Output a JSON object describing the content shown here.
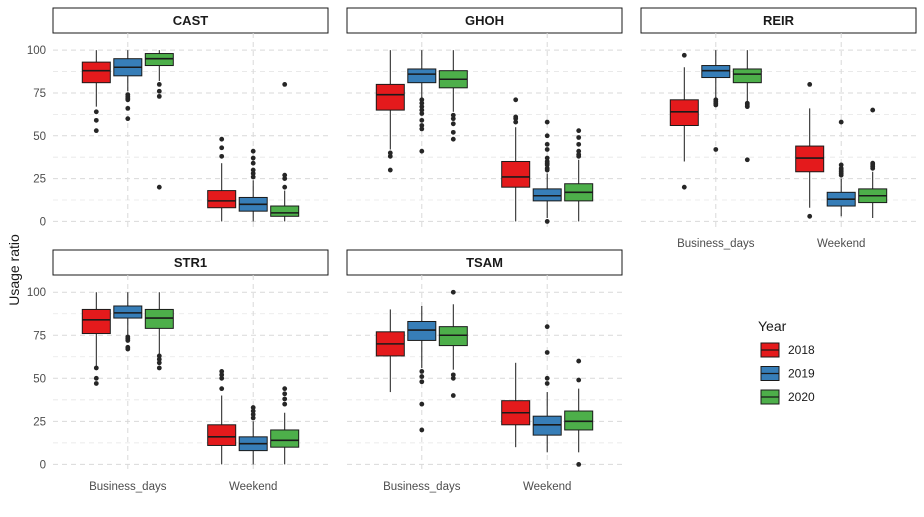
{
  "chart_data": {
    "type": "boxplot",
    "ylabel": "Usage ratio",
    "xlabel": "",
    "categories": [
      "Business_days",
      "Weekend"
    ],
    "y_ticks": [
      0,
      25,
      50,
      75,
      100
    ],
    "ylim": [
      -5,
      110
    ],
    "legend": {
      "title": "Year",
      "placement": "right",
      "entries": [
        {
          "name": "2018",
          "color": "#e41a1c"
        },
        {
          "name": "2019",
          "color": "#377eb8"
        },
        {
          "name": "2020",
          "color": "#4daf4a"
        }
      ]
    },
    "panels": [
      {
        "name": "CAST",
        "groups": [
          {
            "category": "Business_days",
            "year": "2018",
            "whisker_low": 67,
            "q1": 81,
            "median": 88,
            "q3": 93,
            "whisker_high": 100,
            "outliers": [
              64,
              59,
              53
            ]
          },
          {
            "category": "Business_days",
            "year": "2019",
            "whisker_low": 76,
            "q1": 85,
            "median": 90,
            "q3": 95,
            "whisker_high": 100,
            "outliers": [
              74,
              73,
              72,
              71,
              66,
              60
            ]
          },
          {
            "category": "Business_days",
            "year": "2020",
            "whisker_low": 82,
            "q1": 91,
            "median": 95,
            "q3": 98,
            "whisker_high": 100,
            "outliers": [
              80,
              76,
              73,
              20
            ]
          },
          {
            "category": "Weekend",
            "year": "2018",
            "whisker_low": 0,
            "q1": 8,
            "median": 12,
            "q3": 18,
            "whisker_high": 34,
            "outliers": [
              48,
              43,
              38
            ]
          },
          {
            "category": "Weekend",
            "year": "2019",
            "whisker_low": 0,
            "q1": 6,
            "median": 10,
            "q3": 14,
            "whisker_high": 24,
            "outliers": [
              41,
              37,
              34,
              30,
              28,
              26
            ]
          },
          {
            "category": "Weekend",
            "year": "2020",
            "whisker_low": 0,
            "q1": 3,
            "median": 5,
            "q3": 9,
            "whisker_high": 18,
            "outliers": [
              80,
              27,
              25,
              20
            ]
          }
        ]
      },
      {
        "name": "GHOH",
        "groups": [
          {
            "category": "Business_days",
            "year": "2018",
            "whisker_low": 42,
            "q1": 65,
            "median": 74,
            "q3": 80,
            "whisker_high": 100,
            "outliers": [
              40,
              38,
              30
            ]
          },
          {
            "category": "Business_days",
            "year": "2019",
            "whisker_low": 72,
            "q1": 81,
            "median": 86,
            "q3": 89,
            "whisker_high": 100,
            "outliers": [
              71,
              69,
              67,
              65,
              63,
              59,
              56,
              54,
              41
            ]
          },
          {
            "category": "Business_days",
            "year": "2020",
            "whisker_low": 64,
            "q1": 78,
            "median": 83,
            "q3": 88,
            "whisker_high": 100,
            "outliers": [
              62,
              60,
              57,
              52,
              48
            ]
          },
          {
            "category": "Weekend",
            "year": "2018",
            "whisker_low": 0,
            "q1": 20,
            "median": 26,
            "q3": 35,
            "whisker_high": 55,
            "outliers": [
              71,
              61,
              60,
              58
            ]
          },
          {
            "category": "Weekend",
            "year": "2019",
            "whisker_low": 2,
            "q1": 12,
            "median": 15,
            "q3": 19,
            "whisker_high": 28,
            "outliers": [
              58,
              50,
              45,
              42,
              37,
              35,
              34,
              33,
              31,
              30,
              0
            ]
          },
          {
            "category": "Weekend",
            "year": "2020",
            "whisker_low": 0,
            "q1": 12,
            "median": 17,
            "q3": 22,
            "whisker_high": 36,
            "outliers": [
              53,
              49,
              45,
              41,
              39,
              38
            ]
          }
        ]
      },
      {
        "name": "REIR",
        "groups": [
          {
            "category": "Business_days",
            "year": "2018",
            "whisker_low": 35,
            "q1": 56,
            "median": 64,
            "q3": 71,
            "whisker_high": 90,
            "outliers": [
              97,
              20
            ]
          },
          {
            "category": "Business_days",
            "year": "2019",
            "whisker_low": 72,
            "q1": 84,
            "median": 88,
            "q3": 91,
            "whisker_high": 100,
            "outliers": [
              71,
              70,
              69,
              68,
              42
            ]
          },
          {
            "category": "Business_days",
            "year": "2020",
            "whisker_low": 70,
            "q1": 81,
            "median": 86,
            "q3": 89,
            "whisker_high": 100,
            "outliers": [
              69,
              68,
              67,
              36
            ]
          },
          {
            "category": "Weekend",
            "year": "2018",
            "whisker_low": 8,
            "q1": 29,
            "median": 37,
            "q3": 44,
            "whisker_high": 66,
            "outliers": [
              80,
              3
            ]
          },
          {
            "category": "Weekend",
            "year": "2019",
            "whisker_low": 3,
            "q1": 9,
            "median": 13,
            "q3": 17,
            "whisker_high": 25,
            "outliers": [
              58,
              33,
              31,
              30,
              29,
              28,
              27
            ]
          },
          {
            "category": "Weekend",
            "year": "2020",
            "whisker_low": 2,
            "q1": 11,
            "median": 15,
            "q3": 19,
            "whisker_high": 29,
            "outliers": [
              65,
              34,
              33,
              32,
              31
            ]
          }
        ]
      },
      {
        "name": "STR1",
        "groups": [
          {
            "category": "Business_days",
            "year": "2018",
            "whisker_low": 57,
            "q1": 76,
            "median": 84,
            "q3": 90,
            "whisker_high": 100,
            "outliers": [
              56,
              50,
              47
            ]
          },
          {
            "category": "Business_days",
            "year": "2019",
            "whisker_low": 74,
            "q1": 85,
            "median": 88,
            "q3": 92,
            "whisker_high": 100,
            "outliers": [
              74,
              73,
              72,
              68,
              67
            ]
          },
          {
            "category": "Business_days",
            "year": "2020",
            "whisker_low": 64,
            "q1": 79,
            "median": 85,
            "q3": 90,
            "whisker_high": 100,
            "outliers": [
              63,
              61,
              59,
              56
            ]
          },
          {
            "category": "Weekend",
            "year": "2018",
            "whisker_low": 0,
            "q1": 11,
            "median": 16,
            "q3": 23,
            "whisker_high": 40,
            "outliers": [
              54,
              52,
              50,
              44
            ]
          },
          {
            "category": "Weekend",
            "year": "2019",
            "whisker_low": 0,
            "q1": 8,
            "median": 12,
            "q3": 16,
            "whisker_high": 25,
            "outliers": [
              33,
              31,
              29,
              27
            ]
          },
          {
            "category": "Weekend",
            "year": "2020",
            "whisker_low": 0,
            "q1": 10,
            "median": 14,
            "q3": 20,
            "whisker_high": 30,
            "outliers": [
              44,
              41,
              38,
              35
            ]
          }
        ]
      },
      {
        "name": "TSAM",
        "groups": [
          {
            "category": "Business_days",
            "year": "2018",
            "whisker_low": 42,
            "q1": 63,
            "median": 70,
            "q3": 77,
            "whisker_high": 90,
            "outliers": []
          },
          {
            "category": "Business_days",
            "year": "2019",
            "whisker_low": 56,
            "q1": 72,
            "median": 78,
            "q3": 83,
            "whisker_high": 92,
            "outliers": [
              54,
              51,
              48,
              35,
              20
            ]
          },
          {
            "category": "Business_days",
            "year": "2020",
            "whisker_low": 55,
            "q1": 69,
            "median": 75,
            "q3": 80,
            "whisker_high": 93,
            "outliers": [
              100,
              52,
              50,
              40
            ]
          },
          {
            "category": "Weekend",
            "year": "2018",
            "whisker_low": 10,
            "q1": 23,
            "median": 30,
            "q3": 37,
            "whisker_high": 59,
            "outliers": []
          },
          {
            "category": "Weekend",
            "year": "2019",
            "whisker_low": 7,
            "q1": 17,
            "median": 23,
            "q3": 28,
            "whisker_high": 42,
            "outliers": [
              80,
              65,
              50,
              47
            ]
          },
          {
            "category": "Weekend",
            "year": "2020",
            "whisker_low": 7,
            "q1": 20,
            "median": 25,
            "q3": 31,
            "whisker_high": 44,
            "outliers": [
              60,
              49,
              0
            ]
          }
        ]
      }
    ]
  }
}
